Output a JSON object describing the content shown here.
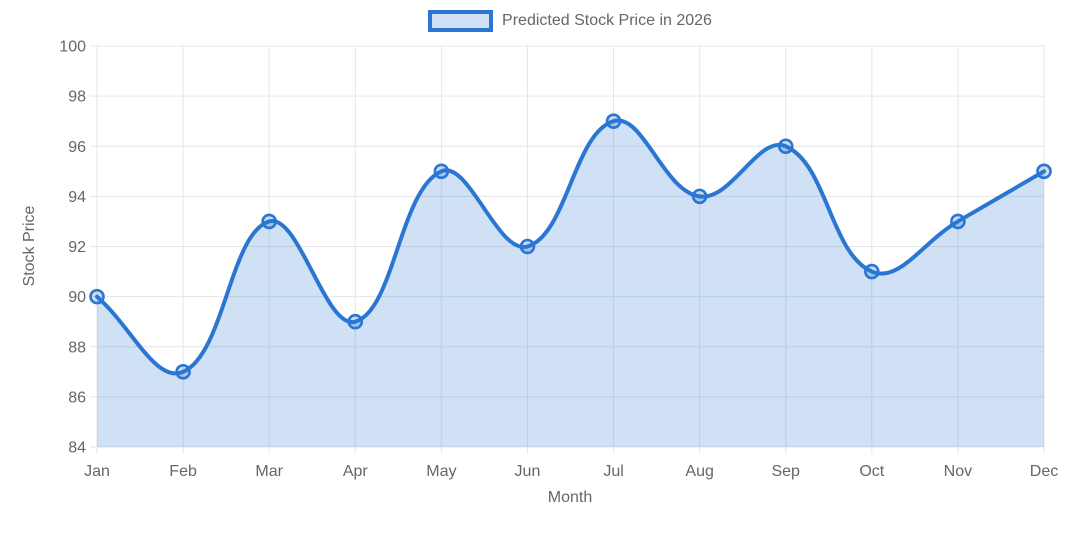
{
  "colors": {
    "line": "#2b76d2",
    "area_fill": "rgba(43, 118, 210, 0.22)",
    "point_fill": "rgba(43, 118, 210, 0.25)",
    "grid": "#e6e6e6",
    "text": "#666666"
  },
  "chart_data": {
    "type": "area",
    "title": "Predicted Stock Price in 2026",
    "categories": [
      "Jan",
      "Feb",
      "Mar",
      "Apr",
      "May",
      "Jun",
      "Jul",
      "Aug",
      "Sep",
      "Oct",
      "Nov",
      "Dec"
    ],
    "series": [
      {
        "name": "Predicted Stock Price in 2026",
        "values": [
          90,
          87,
          93,
          89,
          95,
          92,
          97,
          94,
          96,
          91,
          93,
          95
        ]
      }
    ],
    "xlabel": "Month",
    "ylabel": "Stock Price",
    "ylim": [
      84,
      100
    ],
    "yticks": [
      84,
      86,
      88,
      90,
      92,
      94,
      96,
      98,
      100
    ],
    "grid": true,
    "legend_position": "top",
    "line_tension": 0.4,
    "point_radius": 6.5
  }
}
